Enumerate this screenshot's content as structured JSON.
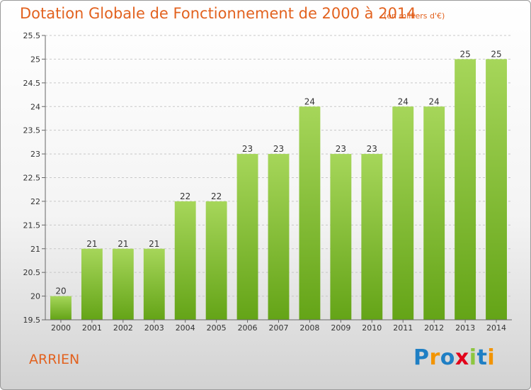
{
  "header": {
    "title": "Dotation Globale de Fonctionnement de 2000 à 2014",
    "subtitle": "(en milliers d'€)"
  },
  "footer": {
    "commune": "ARRIEN",
    "logo": {
      "letters": [
        "P",
        "r",
        "o",
        "x",
        "i",
        "t",
        "i"
      ],
      "colors": [
        "#1f7fc4",
        "#f29400",
        "#1f7fc4",
        "#e2001a",
        "#8dc63f",
        "#1f7fc4",
        "#f29400"
      ]
    }
  },
  "colors": {
    "bar_light": "#a6d65a",
    "bar_dark": "#64a417",
    "title": "#e2621f",
    "grid": "#c8c8c8"
  },
  "chart_data": {
    "type": "bar",
    "categories": [
      "2000",
      "2001",
      "2002",
      "2003",
      "2004",
      "2005",
      "2006",
      "2007",
      "2008",
      "2009",
      "2010",
      "2011",
      "2012",
      "2013",
      "2014"
    ],
    "values": [
      20,
      21,
      21,
      21,
      22,
      22,
      23,
      23,
      24,
      23,
      23,
      24,
      24,
      25,
      25
    ],
    "labels": [
      "20",
      "21",
      "21",
      "21",
      "22",
      "22",
      "23",
      "23",
      "24",
      "23",
      "23",
      "24",
      "24",
      "25",
      "25"
    ],
    "title": "Dotation Globale de Fonctionnement de 2000 à 2014",
    "subtitle": "(en milliers d'€)",
    "ylim": [
      19.5,
      25.5
    ],
    "yticks": [
      19.5,
      20,
      20.5,
      21,
      21.5,
      22,
      22.5,
      23,
      23.5,
      24,
      24.5,
      25,
      25.5
    ],
    "ytick_labels": [
      "19.5",
      "20",
      "20.5",
      "21",
      "21.5",
      "22",
      "22.5",
      "23",
      "23.5",
      "24",
      "24.5",
      "25",
      "25.5"
    ],
    "grid": true
  }
}
